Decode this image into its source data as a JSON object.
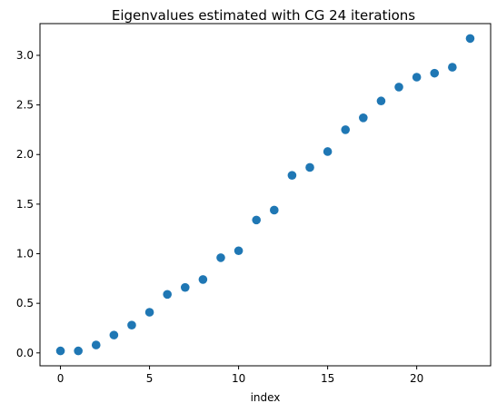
{
  "chart_data": {
    "type": "scatter",
    "title": "Eigenvalues estimated with CG 24 iterations",
    "xlabel": "index",
    "ylabel": "",
    "xlim": [
      -1.15,
      24.15
    ],
    "ylim": [
      -0.13,
      3.32
    ],
    "x_ticks": [
      0,
      5,
      10,
      15,
      20
    ],
    "x_tick_labels": [
      "0",
      "5",
      "10",
      "15",
      "20"
    ],
    "y_ticks": [
      0.0,
      0.5,
      1.0,
      1.5,
      2.0,
      2.5,
      3.0
    ],
    "y_tick_labels": [
      "0.0",
      "0.5",
      "1.0",
      "1.5",
      "2.0",
      "2.5",
      "3.0"
    ],
    "grid": false,
    "marker_color": "#1f77b4",
    "series": [
      {
        "x": [
          0,
          1,
          2,
          3,
          4,
          5,
          6,
          7,
          8,
          9,
          10,
          11,
          12,
          13,
          14,
          15,
          16,
          17,
          18,
          19,
          20,
          21,
          22,
          23
        ],
        "y": [
          0.02,
          0.02,
          0.08,
          0.18,
          0.28,
          0.41,
          0.59,
          0.66,
          0.74,
          0.96,
          1.03,
          1.34,
          1.44,
          1.79,
          1.87,
          2.03,
          2.25,
          2.37,
          2.54,
          2.68,
          2.78,
          2.82,
          2.88,
          3.17
        ]
      }
    ]
  }
}
